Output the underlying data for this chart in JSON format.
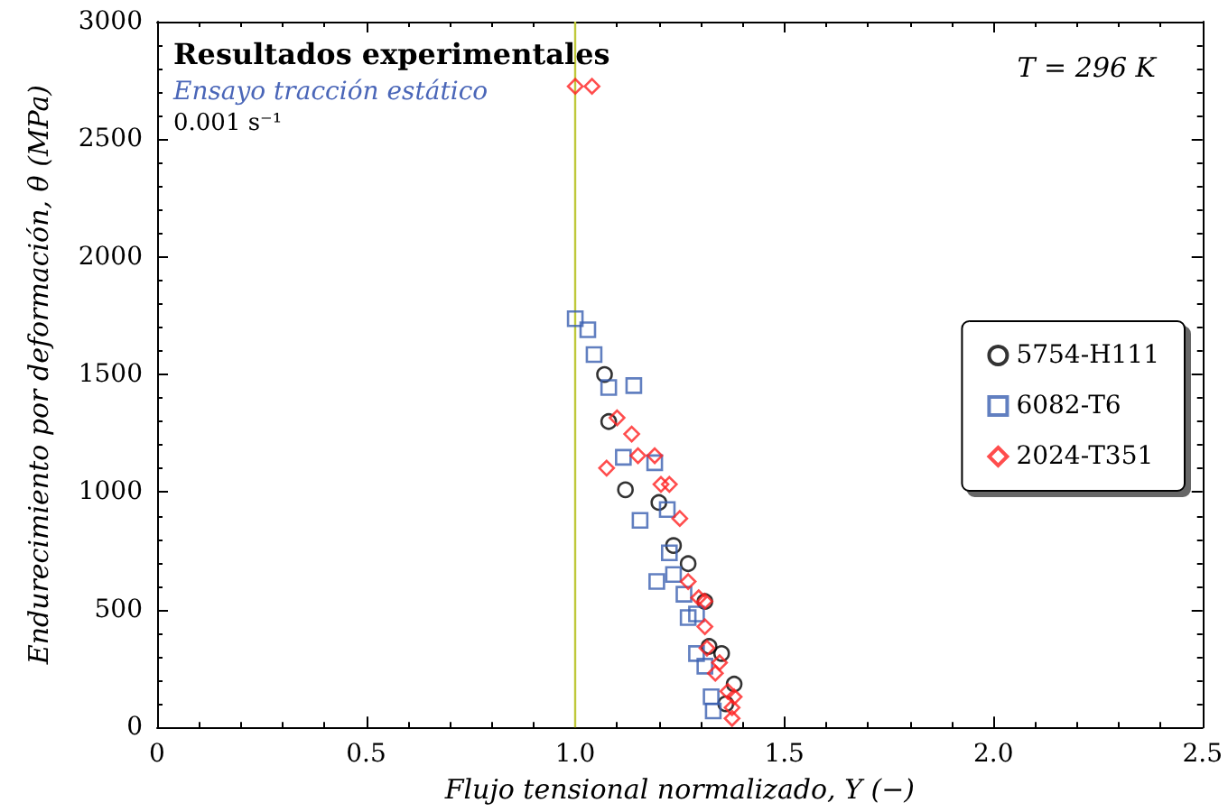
{
  "chart_data": {
    "type": "scatter",
    "xlabel": "Flujo tensional normalizado, Y (−)",
    "ylabel": "Endurecimiento por deformación, θ (MPa)",
    "annotations": [
      "Resultados experimentales",
      "Ensayo tracción estático",
      "0.001 s⁻¹",
      "T = 296 K"
    ],
    "xlim": [
      0,
      2.5
    ],
    "xticks": [
      0,
      0.5,
      {
        "value": 1,
        "label": "1.0"
      },
      1.5,
      {
        "value": 2,
        "label": "2.0"
      },
      2.5
    ],
    "ylim": [
      0,
      3000
    ],
    "yticks": [
      0,
      500,
      1000,
      1500,
      2000,
      2500,
      3000
    ],
    "grid": false,
    "legend": "right",
    "ref_lines": [
      {
        "axis": "x",
        "value": 1,
        "color": "#bfc83a"
      }
    ],
    "series": [
      {
        "name": "5754-H111",
        "color": "#000000",
        "marker": "circle",
        "x": [
          1.07,
          1.08,
          1.12,
          1.2,
          1.235,
          1.27,
          1.31,
          1.32,
          1.35,
          1.38,
          1.36
        ],
        "values": [
          1500,
          1300,
          1010,
          956,
          773,
          696,
          535,
          344,
          314,
          184,
          100
        ]
      },
      {
        "name": "6082-T6",
        "color": "#3a5fb0",
        "marker": "square",
        "x": [
          1.0,
          1.03,
          1.045,
          1.08,
          1.14,
          1.115,
          1.19,
          1.155,
          1.22,
          1.225,
          1.195,
          1.235,
          1.26,
          1.27,
          1.29,
          1.29,
          1.31,
          1.325,
          1.33
        ],
        "values": [
          1737,
          1690,
          1585,
          1445,
          1453,
          1148,
          1125,
          880,
          926,
          742,
          620,
          650,
          566,
          467,
          482,
          314,
          260,
          130,
          70
        ]
      },
      {
        "name": "2024-T351",
        "color": "#ff2020",
        "marker": "diamond",
        "x": [
          1.0,
          1.04,
          1.1,
          1.135,
          1.15,
          1.19,
          1.075,
          1.205,
          1.225,
          1.25,
          1.27,
          1.295,
          1.31,
          1.31,
          1.315,
          1.345,
          1.335,
          1.365,
          1.38,
          1.375,
          1.375
        ],
        "values": [
          2725,
          2725,
          1316,
          1247,
          1155,
          1155,
          1102,
          1033,
          1033,
          888,
          620,
          551,
          536,
          428,
          337,
          275,
          230,
          153,
          130,
          84,
          38
        ]
      }
    ]
  }
}
